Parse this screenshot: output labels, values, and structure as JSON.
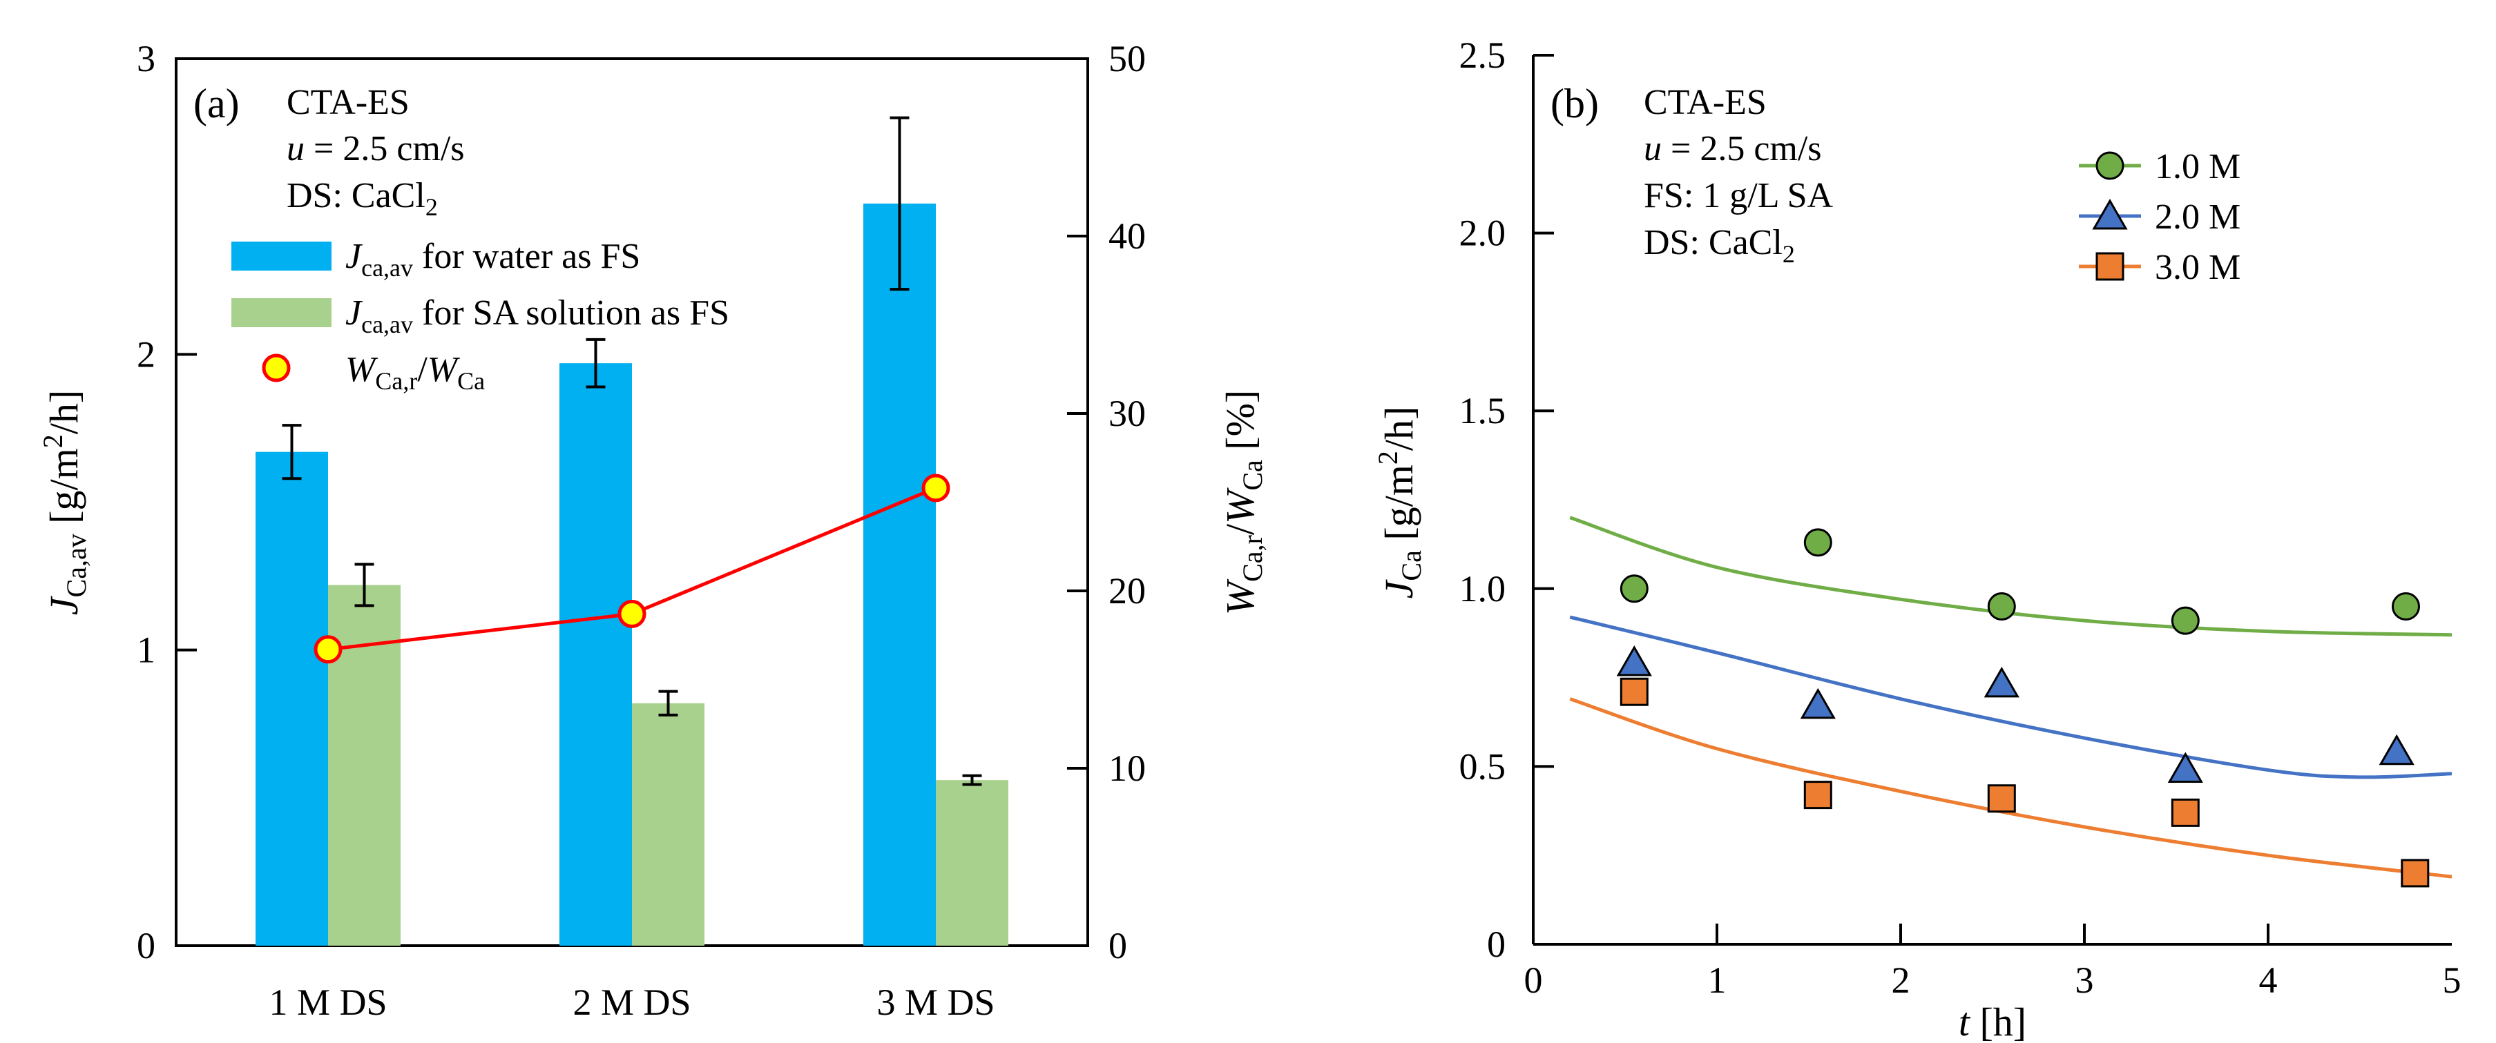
{
  "colors": {
    "water_bar": "#00b0f0",
    "sa_bar": "#a9d18e",
    "ratio_line": "#ff0000",
    "ratio_marker": "#ffff00",
    "s1": "#70ad47",
    "s2": "#4472c4",
    "s3": "#ed7d31"
  },
  "chart_data": [
    {
      "type": "bar",
      "panel_label": "(a)",
      "annotation_lines": [
        "CTA-ES",
        "u = 2.5 cm/s",
        "DS: CaCl2"
      ],
      "categories": [
        "1 M DS",
        "2 M DS",
        "3 M DS"
      ],
      "series": [
        {
          "name": "Jca,av for water as FS",
          "axis": "left",
          "values": [
            1.67,
            1.97,
            2.51
          ],
          "errors": [
            0.09,
            0.08,
            0.29
          ]
        },
        {
          "name": "Jca,av for SA solution as FS",
          "axis": "left",
          "values": [
            1.22,
            0.82,
            0.56
          ],
          "errors": [
            0.07,
            0.04,
            0.015
          ]
        },
        {
          "name": "WCa,r/WCa",
          "axis": "right",
          "kind": "line",
          "values": [
            16.7,
            18.7,
            25.8
          ]
        }
      ],
      "ylabel": "JCa,av [g/m2/h]",
      "y2label": "WCa,r/WCa [%]",
      "ylim": [
        0,
        3
      ],
      "y2lim": [
        0,
        50
      ],
      "yticks": [
        "0",
        "1",
        "2",
        "3"
      ],
      "y2ticks": [
        "0",
        "10",
        "20",
        "30",
        "40",
        "50"
      ],
      "legend": "upper-left"
    },
    {
      "type": "scatter",
      "panel_label": "(b)",
      "annotation_lines": [
        "CTA-ES",
        "u = 2.5 cm/s",
        "FS: 1 g/L SA",
        "DS: CaCl2"
      ],
      "series": [
        {
          "name": "1.0 M",
          "marker": "circle",
          "x": [
            0.55,
            1.55,
            2.55,
            3.55,
            4.75
          ],
          "y": [
            1.0,
            1.13,
            0.95,
            0.91,
            0.95
          ],
          "fit_x": [
            0.2,
            1.0,
            2.0,
            3.0,
            4.0,
            5.0
          ],
          "fit_y": [
            1.2,
            1.06,
            0.97,
            0.91,
            0.88,
            0.87
          ]
        },
        {
          "name": "2.0 M",
          "marker": "triangle",
          "x": [
            0.55,
            1.55,
            2.55,
            3.55,
            4.7
          ],
          "y": [
            0.79,
            0.67,
            0.73,
            0.49,
            0.54
          ],
          "fit_x": [
            0.2,
            1.0,
            2.0,
            3.0,
            4.0,
            4.5,
            5.0
          ],
          "fit_y": [
            0.92,
            0.82,
            0.69,
            0.58,
            0.49,
            0.47,
            0.48
          ]
        },
        {
          "name": "3.0 M",
          "marker": "square",
          "x": [
            0.55,
            1.55,
            2.55,
            3.55,
            4.8
          ],
          "y": [
            0.71,
            0.42,
            0.41,
            0.37,
            0.2
          ],
          "fit_x": [
            0.2,
            1.0,
            2.0,
            3.0,
            4.0,
            5.0
          ],
          "fit_y": [
            0.69,
            0.55,
            0.43,
            0.33,
            0.25,
            0.19
          ]
        }
      ],
      "xlabel": "t [h]",
      "ylabel": "JCa [g/m2/h]",
      "xlim": [
        0,
        5
      ],
      "ylim": [
        0,
        2.5
      ],
      "xticks": [
        "0",
        "1",
        "2",
        "3",
        "4",
        "5"
      ],
      "yticks": [
        "0",
        "0.5",
        "1.0",
        "1.5",
        "2.0",
        "2.5"
      ],
      "legend": "upper-right"
    }
  ]
}
